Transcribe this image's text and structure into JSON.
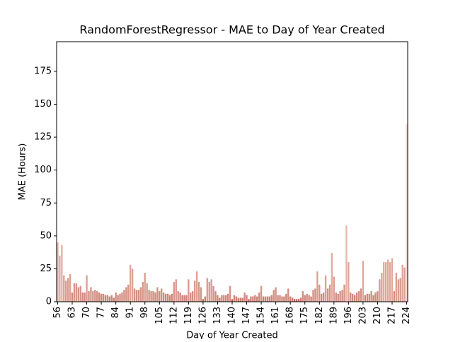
{
  "chart_data": {
    "type": "bar",
    "title": "RandomForestRegressor - MAE to Day of Year Created",
    "xlabel": "Day of Year Created",
    "ylabel": "MAE (Hours)",
    "categories": [
      "56",
      null,
      null,
      null,
      null,
      null,
      null,
      "63",
      null,
      null,
      null,
      null,
      null,
      null,
      "70",
      null,
      null,
      null,
      null,
      null,
      null,
      "77",
      null,
      null,
      null,
      null,
      null,
      null,
      "84",
      null,
      null,
      null,
      null,
      null,
      null,
      "91",
      null,
      null,
      null,
      null,
      null,
      null,
      "98",
      null,
      null,
      null,
      null,
      null,
      null,
      "105",
      null,
      null,
      null,
      null,
      null,
      null,
      "112",
      null,
      null,
      null,
      null,
      null,
      null,
      "119",
      null,
      null,
      null,
      null,
      null,
      null,
      "126",
      null,
      null,
      null,
      null,
      null,
      null,
      "133",
      null,
      null,
      null,
      null,
      null,
      null,
      "140",
      null,
      null,
      null,
      null,
      null,
      null,
      "147",
      null,
      null,
      null,
      null,
      null,
      null,
      "154",
      null,
      null,
      null,
      null,
      null,
      null,
      "161",
      null,
      null,
      null,
      null,
      null,
      null,
      "168",
      null,
      null,
      null,
      null,
      null,
      null,
      "175",
      null,
      null,
      null,
      null,
      null,
      null,
      "182",
      null,
      null,
      null,
      null,
      null,
      null,
      "189",
      null,
      null,
      null,
      null,
      null,
      null,
      "196",
      null,
      null,
      null,
      null,
      null,
      null,
      "203",
      null,
      null,
      null,
      null,
      null,
      null,
      "210",
      null,
      null,
      null,
      null,
      null,
      null,
      "217",
      null,
      null,
      null,
      null,
      null,
      null,
      "224"
    ],
    "values": [
      45,
      35,
      43,
      20,
      16,
      18,
      21,
      7,
      14,
      14,
      11,
      12,
      7,
      7,
      20,
      8,
      11,
      8,
      9,
      8,
      7,
      6,
      6,
      5,
      5,
      4,
      5,
      3,
      7,
      5,
      6,
      7,
      9,
      11,
      13,
      28,
      25,
      10,
      9,
      9,
      11,
      15,
      22,
      14,
      9,
      8,
      8,
      7,
      11,
      8,
      10,
      7,
      6,
      6,
      5,
      6,
      15,
      17,
      8,
      7,
      5,
      5,
      5,
      17,
      7,
      8,
      16,
      23,
      15,
      11,
      2,
      4,
      18,
      15,
      17,
      12,
      8,
      5,
      3,
      5,
      5,
      5,
      6,
      12,
      2,
      5,
      4,
      3,
      3,
      3,
      7,
      5,
      2,
      4,
      4,
      5,
      4,
      7,
      12,
      4,
      4,
      4,
      4,
      5,
      9,
      11,
      5,
      5,
      4,
      4,
      6,
      10,
      4,
      3,
      2,
      2,
      2,
      3,
      8,
      5,
      6,
      5,
      4,
      9,
      10,
      23,
      13,
      6,
      7,
      20,
      10,
      13,
      37,
      19,
      7,
      6,
      8,
      9,
      13,
      58,
      30,
      7,
      6,
      5,
      7,
      8,
      10,
      31,
      5,
      6,
      6,
      8,
      5,
      7,
      8,
      17,
      22,
      30,
      30,
      32,
      30,
      33,
      8,
      22,
      17,
      18,
      28,
      26,
      135
    ],
    "palette": [
      "#c0675a",
      "#f6d5ca"
    ],
    "ylim": [
      0,
      197.5
    ],
    "yticks": [
      0,
      25,
      50,
      75,
      100,
      125,
      150,
      175
    ],
    "grid": false
  }
}
